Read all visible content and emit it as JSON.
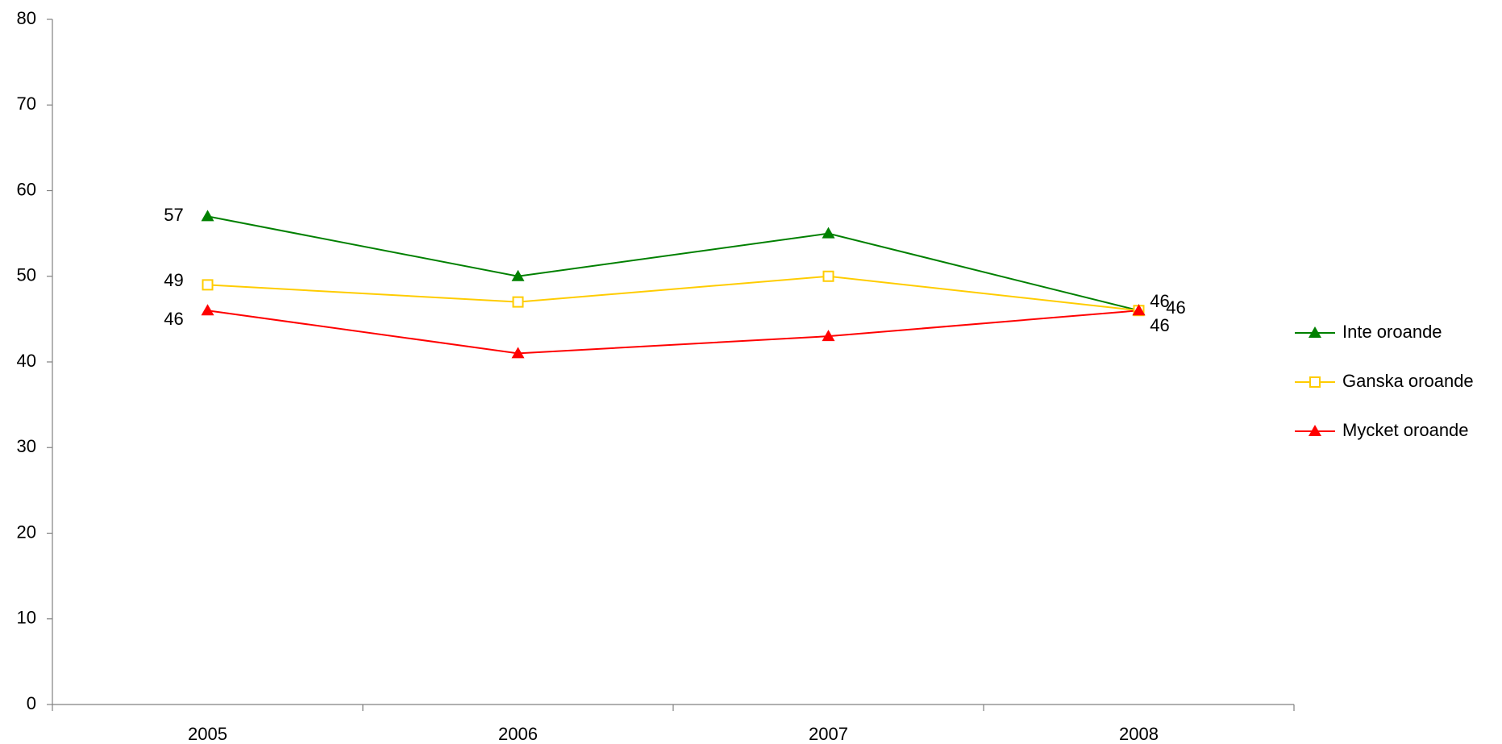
{
  "chart_data": {
    "type": "line",
    "categories": [
      "2005",
      "2006",
      "2007",
      "2008"
    ],
    "series": [
      {
        "name": "Inte oroande",
        "color": "#008000",
        "marker": "triangle",
        "values": [
          57,
          50,
          55,
          46
        ]
      },
      {
        "name": "Ganska oroande",
        "color": "#ffcc00",
        "marker": "square",
        "values": [
          49,
          47,
          50,
          46
        ]
      },
      {
        "name": "Mycket oroande",
        "color": "#ff0000",
        "marker": "triangle",
        "values": [
          46,
          41,
          43,
          46
        ]
      }
    ],
    "data_labels_at": [
      0,
      3
    ],
    "ylim": [
      0,
      80
    ],
    "yticks": [
      0,
      10,
      20,
      30,
      40,
      50,
      60,
      70,
      80
    ],
    "grid": false,
    "legend": "right"
  }
}
